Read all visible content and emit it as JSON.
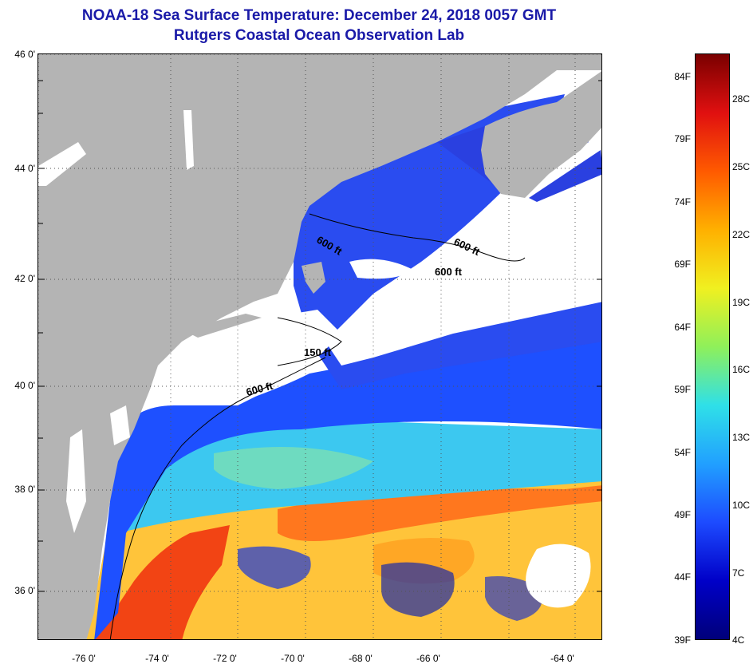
{
  "title": {
    "line1": "NOAA-18 Sea Surface Temperature:  December 24, 2018 0057 GMT",
    "line2": "Rutgers Coastal Ocean Observation Lab"
  },
  "axes": {
    "lat_labels": [
      "46 0'",
      "44 0'",
      "42 0'",
      "40 0'",
      "38 0'",
      "36 0'"
    ],
    "lon_labels": [
      "-76 0'",
      "-74 0'",
      "-72 0'",
      "-70 0'",
      "-68 0'",
      "-66 0'",
      "-64 0'"
    ],
    "lat_values": [
      46,
      44,
      42,
      40,
      38,
      36
    ],
    "lon_values": [
      -76,
      -74,
      -72,
      -70,
      -68,
      -66,
      -64
    ],
    "lat_range": [
      35,
      46
    ],
    "lon_range": [
      -77,
      -63
    ]
  },
  "contours": {
    "labels": [
      "600 ft",
      "600 ft",
      "600 ft",
      "150 ft",
      "600 ft"
    ]
  },
  "colorbar": {
    "fahrenheit_labels": [
      "84F",
      "79F",
      "74F",
      "69F",
      "64F",
      "59F",
      "54F",
      "49F",
      "44F",
      "39F"
    ],
    "celsius_labels": [
      "28C",
      "25C",
      "22C",
      "19C",
      "16C",
      "13C",
      "10C",
      "7C",
      "4C"
    ],
    "range_f": [
      39,
      86
    ],
    "colors": [
      "#00007a",
      "#0000c8",
      "#1d4bff",
      "#21a0ff",
      "#2fe0e8",
      "#8ff05a",
      "#f0f020",
      "#ffb000",
      "#ff5a00",
      "#e01010",
      "#7a0000"
    ]
  },
  "map_colors": {
    "land": "#b4b4b4",
    "cloud": "#ffffff",
    "warm": "#f55a14",
    "gulf_stream": "#ff8c00",
    "mid": "#ffc83c",
    "cool": "#28b4ff",
    "cold": "#1e50ff",
    "deep_cold": "#0a1ea0"
  }
}
